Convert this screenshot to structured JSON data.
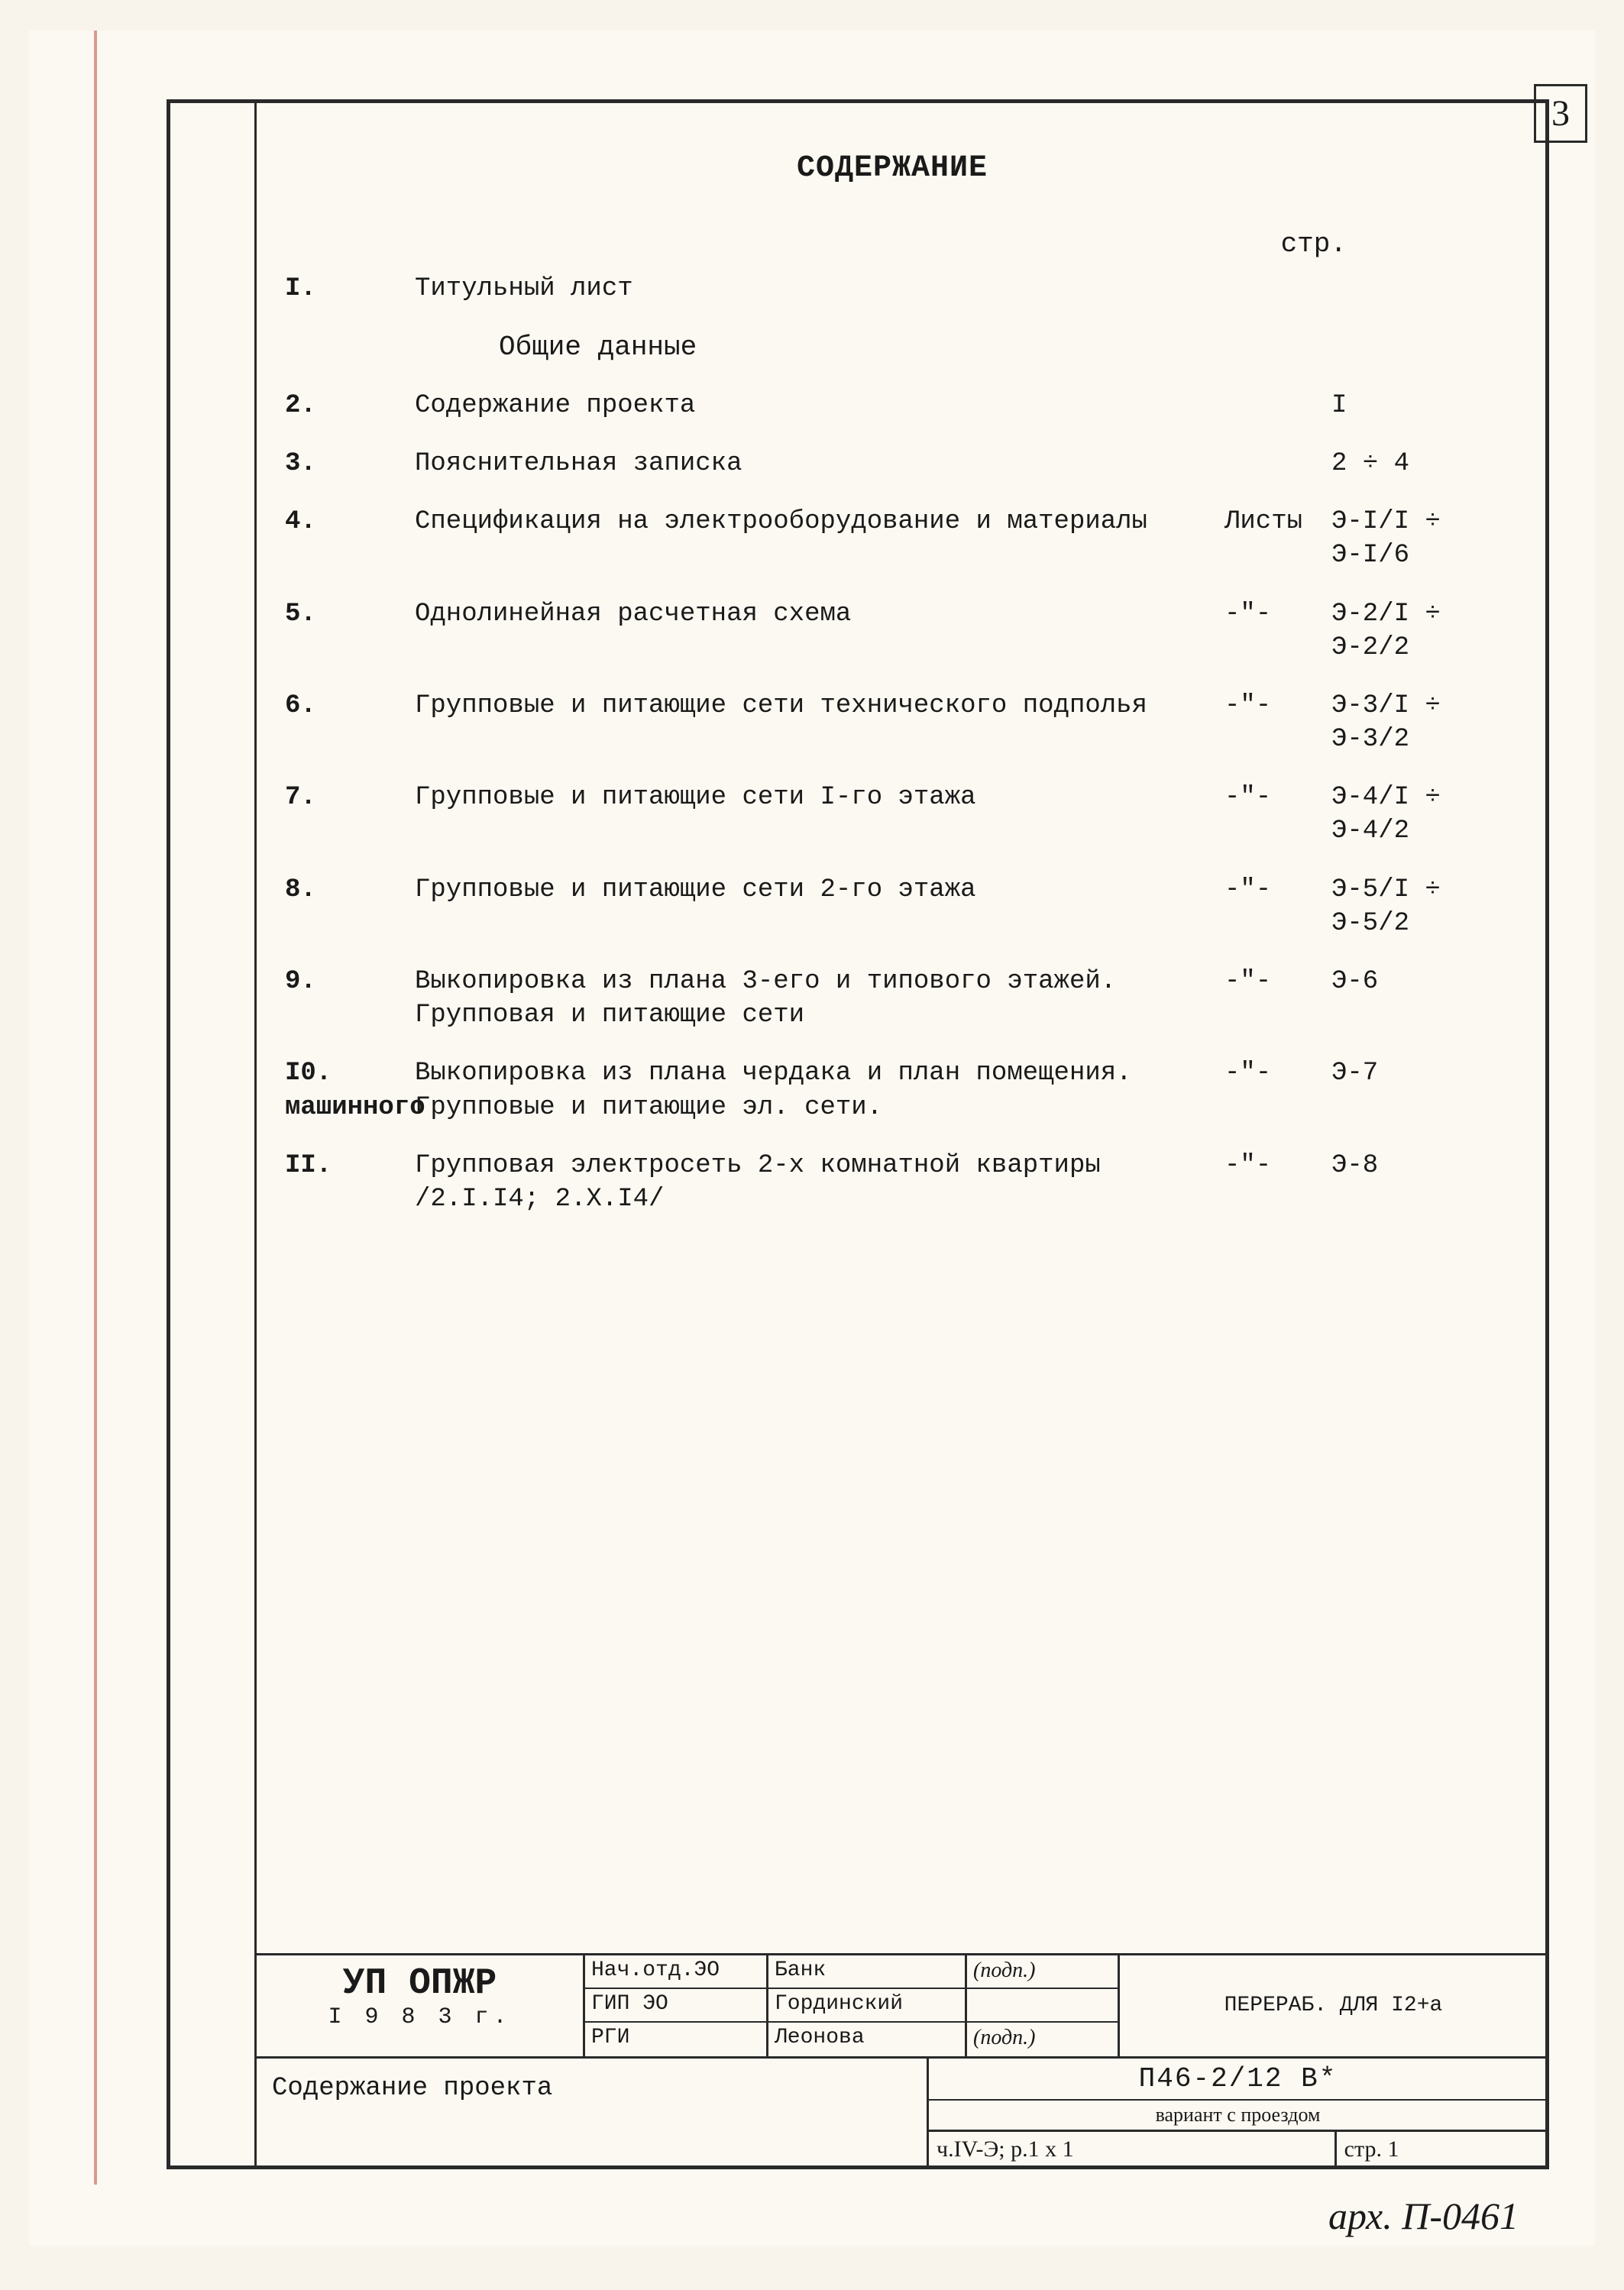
{
  "page_number_top": "3",
  "title": "СОДЕРЖАНИЕ",
  "page_column_header": "стр.",
  "subheading": "Общие данные",
  "toc": [
    {
      "num": "I.",
      "text": "Титульный лист",
      "mid": "",
      "page": ""
    },
    {
      "num": "2.",
      "text": "Содержание проекта",
      "mid": "",
      "page": "I"
    },
    {
      "num": "3.",
      "text": "Пояснительная записка",
      "mid": "",
      "page": "2 ÷ 4"
    },
    {
      "num": "4.",
      "text": "Спецификация на электрооборудование и материалы",
      "mid": "Листы",
      "page": "Э-I/I ÷\nЭ-I/6"
    },
    {
      "num": "5.",
      "text": "Однолинейная расчетная схема",
      "mid": "-\"-",
      "page": "Э-2/I ÷\nЭ-2/2"
    },
    {
      "num": "6.",
      "text": "Групповые и питающие сети технического подполья",
      "mid": "-\"-",
      "page": "Э-3/I ÷\nЭ-3/2"
    },
    {
      "num": "7.",
      "text": "Групповые и питающие сети I-го этажа",
      "mid": "-\"-",
      "page": "Э-4/I ÷\nЭ-4/2"
    },
    {
      "num": "8.",
      "text": "Групповые и питающие сети 2-го этажа",
      "mid": "-\"-",
      "page": "Э-5/I ÷\nЭ-5/2"
    },
    {
      "num": "9.",
      "text": "Выкопировка из плана 3-его и типового этажей. Групповая и питающие сети",
      "mid": "-\"-",
      "page": "Э-6"
    },
    {
      "num": "I0. машинного",
      "text": "Выкопировка из плана чердака и план помещения. Групповые и питающие эл. сети.",
      "mid": "-\"-",
      "page": "Э-7"
    },
    {
      "num": "II.",
      "text": "Групповая электросеть 2-х комнатной квартиры /2.I.I4; 2.X.I4/",
      "mid": "-\"-",
      "page": "Э-8"
    }
  ],
  "title_block": {
    "org_name": "УП ОПЖР",
    "org_year": "I 9 8 3 г.",
    "roles": [
      "Нач.отд.ЭО",
      "ГИП ЭО",
      "РГИ"
    ],
    "names": [
      "Банк",
      "Гординский",
      "Леонова"
    ],
    "sigs": [
      "(подп.)",
      "",
      "(подп.)"
    ],
    "note": "ПЕРЕРАБ.\nДЛЯ I2+а",
    "description": "Содержание проекта",
    "code_top": "П46-2/12 В*",
    "code_sub": "вариант с проездом",
    "code_left": "ч.IV-Э; р.1 х 1",
    "code_right": "стр. 1"
  },
  "archive_note": "арх. П-0461",
  "colors": {
    "paper": "#fcf9f2",
    "ink": "#1a1a1a",
    "red_margin": "rgba(170,40,30,0.45)"
  }
}
